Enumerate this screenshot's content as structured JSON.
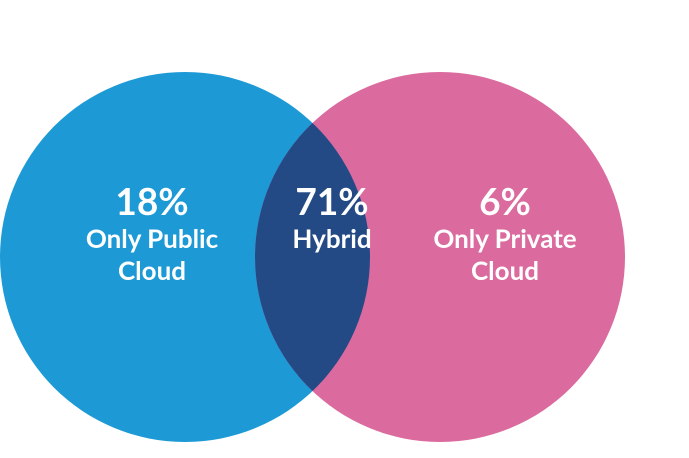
{
  "chart_data": {
    "type": "venn",
    "categories": [
      "Only Public Cloud",
      "Hybrid",
      "Only Private Cloud"
    ],
    "values": [
      18,
      71,
      6
    ],
    "value_labels": [
      "18%",
      "71%",
      "6%"
    ],
    "colors": [
      "#1d9ad6",
      "#244a86",
      "#db6b9e"
    ]
  }
}
